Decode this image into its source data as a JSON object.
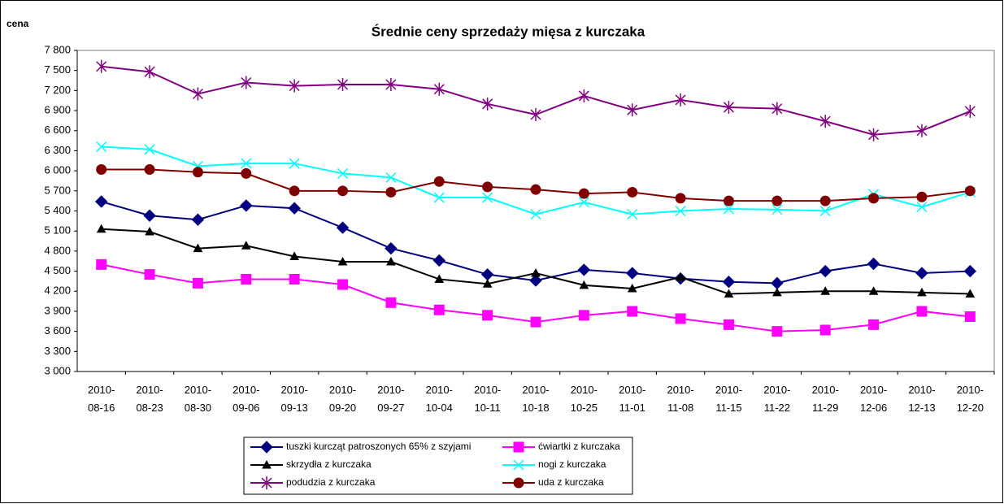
{
  "chart_data": {
    "type": "line",
    "title": "Średnie ceny sprzedaży mięsa z kurczaka",
    "y_label": "cena",
    "categories": [
      "2010-08-16",
      "2010-08-23",
      "2010-08-30",
      "2010-09-06",
      "2010-09-13",
      "2010-09-20",
      "2010-09-27",
      "2010-10-04",
      "2010-10-11",
      "2010-10-18",
      "2010-10-25",
      "2010-11-01",
      "2010-11-08",
      "2010-11-15",
      "2010-11-22",
      "2010-11-29",
      "2010-12-06",
      "2010-12-13",
      "2010-12-20"
    ],
    "series": [
      {
        "name": "tuszki kurcząt patroszonych 65% z szyjami",
        "color": "#000080",
        "marker": "diamond",
        "values": [
          5540,
          5330,
          5270,
          5480,
          5440,
          5150,
          4840,
          4660,
          4450,
          4360,
          4520,
          4470,
          4390,
          4340,
          4320,
          4500,
          4610,
          4470,
          4500
        ]
      },
      {
        "name": "ćwiartki z kurczaka",
        "color": "#ff00ff",
        "marker": "square",
        "values": [
          4600,
          4450,
          4320,
          4380,
          4380,
          4300,
          4030,
          3920,
          3840,
          3740,
          3840,
          3900,
          3790,
          3700,
          3600,
          3620,
          3700,
          3900,
          3820
        ]
      },
      {
        "name": "skrzydła z kurczaka",
        "color": "#000000",
        "marker": "triangle",
        "values": [
          5130,
          5090,
          4840,
          4880,
          4720,
          4640,
          4640,
          4380,
          4310,
          4470,
          4290,
          4240,
          4410,
          4160,
          4180,
          4200,
          4200,
          4180,
          4160
        ]
      },
      {
        "name": "nogi z kurczaka",
        "color": "#00ffff",
        "marker": "x",
        "values": [
          6360,
          6320,
          6070,
          6110,
          6110,
          5960,
          5900,
          5600,
          5600,
          5350,
          5530,
          5350,
          5400,
          5430,
          5420,
          5400,
          5650,
          5460,
          5680
        ]
      },
      {
        "name": "podudzia z kurczaka",
        "color": "#800080",
        "marker": "star",
        "values": [
          7560,
          7480,
          7150,
          7320,
          7270,
          7290,
          7290,
          7220,
          7000,
          6840,
          7120,
          6910,
          7060,
          6950,
          6930,
          6740,
          6540,
          6600,
          6890
        ]
      },
      {
        "name": "uda z kurczaka",
        "color": "#800000",
        "marker": "circle",
        "values": [
          6020,
          6020,
          5980,
          5960,
          5700,
          5700,
          5680,
          5840,
          5760,
          5720,
          5660,
          5680,
          5590,
          5550,
          5550,
          5550,
          5590,
          5610,
          5700
        ]
      }
    ],
    "ylim": [
      3000,
      7800
    ],
    "yticks": [
      {
        "value": 3000,
        "label": "3 000"
      },
      {
        "value": 3300,
        "label": "3 300"
      },
      {
        "value": 3600,
        "label": "3 600"
      },
      {
        "value": 3900,
        "label": "3 900"
      },
      {
        "value": 4200,
        "label": "4 200"
      },
      {
        "value": 4500,
        "label": "4 500"
      },
      {
        "value": 4800,
        "label": "4 800"
      },
      {
        "value": 5100,
        "label": "5 100"
      },
      {
        "value": 5400,
        "label": "5 400"
      },
      {
        "value": 5700,
        "label": "5 700"
      },
      {
        "value": 6000,
        "label": "6 000"
      },
      {
        "value": 6300,
        "label": "6 300"
      },
      {
        "value": 6600,
        "label": "6 600"
      },
      {
        "value": 6900,
        "label": "6 900"
      },
      {
        "value": 7200,
        "label": "7 200"
      },
      {
        "value": 7500,
        "label": "7 500"
      },
      {
        "value": 7800,
        "label": "7 800"
      }
    ],
    "grid": false,
    "legend": "bottom"
  }
}
